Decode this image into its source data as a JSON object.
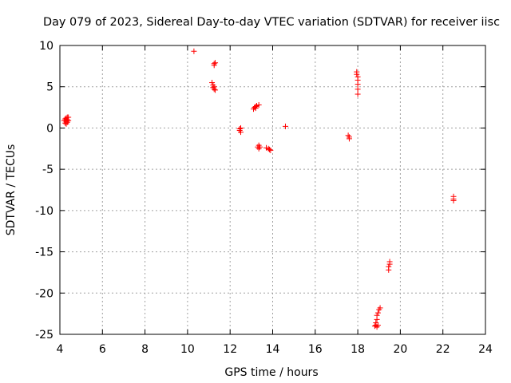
{
  "chart_data": {
    "type": "scatter",
    "title": "Day 079 of 2023, Sidereal Day-to-day VTEC variation (SDTVAR) for receiver iisc",
    "xlabel": "GPS time / hours",
    "ylabel": "SDTVAR / TECUs",
    "xlim": [
      4,
      24
    ],
    "ylim": [
      -25,
      10
    ],
    "xticks": [
      4,
      6,
      8,
      10,
      12,
      14,
      16,
      18,
      20,
      22,
      24
    ],
    "yticks": [
      -25,
      -20,
      -15,
      -10,
      -5,
      0,
      5,
      10
    ],
    "xtick_labels": [
      "4",
      "6",
      "8",
      "10",
      "12",
      "14",
      "16",
      "18",
      "20",
      "22",
      "24"
    ],
    "ytick_labels": [
      "-25",
      "-20",
      "-15",
      "-10",
      "-5",
      "0",
      "5",
      "10"
    ],
    "grid": true,
    "marker": "+",
    "marker_color": "#ff0000",
    "series": [
      {
        "name": "SDTVAR",
        "points": [
          [
            4.25,
            0.6
          ],
          [
            4.25,
            0.9
          ],
          [
            4.25,
            1.1
          ],
          [
            4.3,
            0.5
          ],
          [
            4.3,
            0.8
          ],
          [
            4.3,
            1.2
          ],
          [
            4.35,
            0.7
          ],
          [
            4.35,
            1.0
          ],
          [
            4.35,
            1.3
          ],
          [
            4.4,
            0.9
          ],
          [
            4.4,
            1.3
          ],
          [
            4.2,
            0.9
          ],
          [
            10.3,
            9.3
          ],
          [
            11.15,
            5.5
          ],
          [
            11.2,
            5.2
          ],
          [
            11.2,
            4.9
          ],
          [
            11.25,
            4.7
          ],
          [
            11.3,
            4.6
          ],
          [
            11.25,
            5.0
          ],
          [
            11.25,
            7.8
          ],
          [
            11.25,
            7.6
          ],
          [
            11.3,
            7.9
          ],
          [
            12.45,
            -0.1
          ],
          [
            12.45,
            -0.3
          ],
          [
            12.5,
            -0.5
          ],
          [
            12.5,
            0.0
          ],
          [
            13.1,
            2.3
          ],
          [
            13.15,
            2.5
          ],
          [
            13.2,
            2.6
          ],
          [
            13.25,
            2.7
          ],
          [
            13.35,
            2.8
          ],
          [
            13.2,
            2.4
          ],
          [
            13.3,
            -2.3
          ],
          [
            13.35,
            -2.5
          ],
          [
            13.35,
            -2.1
          ],
          [
            13.4,
            -2.3
          ],
          [
            13.7,
            -2.4
          ],
          [
            13.8,
            -2.5
          ],
          [
            13.85,
            -2.6
          ],
          [
            13.9,
            -2.7
          ],
          [
            14.6,
            0.2
          ],
          [
            17.55,
            -0.9
          ],
          [
            17.6,
            -1.1
          ],
          [
            17.6,
            -1.3
          ],
          [
            17.95,
            6.8
          ],
          [
            17.95,
            6.5
          ],
          [
            18.0,
            6.2
          ],
          [
            18.0,
            5.8
          ],
          [
            18.0,
            5.3
          ],
          [
            18.0,
            4.7
          ],
          [
            18.0,
            4.1
          ],
          [
            18.8,
            -24.0
          ],
          [
            18.85,
            -23.9
          ],
          [
            18.85,
            -23.6
          ],
          [
            18.9,
            -23.2
          ],
          [
            18.9,
            -22.7
          ],
          [
            18.95,
            -22.4
          ],
          [
            19.0,
            -22.0
          ],
          [
            19.05,
            -21.8
          ],
          [
            18.95,
            -23.9
          ],
          [
            18.9,
            -24.1
          ],
          [
            19.45,
            -17.2
          ],
          [
            19.45,
            -16.8
          ],
          [
            19.5,
            -16.5
          ],
          [
            19.5,
            -16.2
          ],
          [
            22.5,
            -8.3
          ],
          [
            22.5,
            -8.6
          ],
          [
            22.5,
            -8.8
          ]
        ]
      }
    ]
  }
}
